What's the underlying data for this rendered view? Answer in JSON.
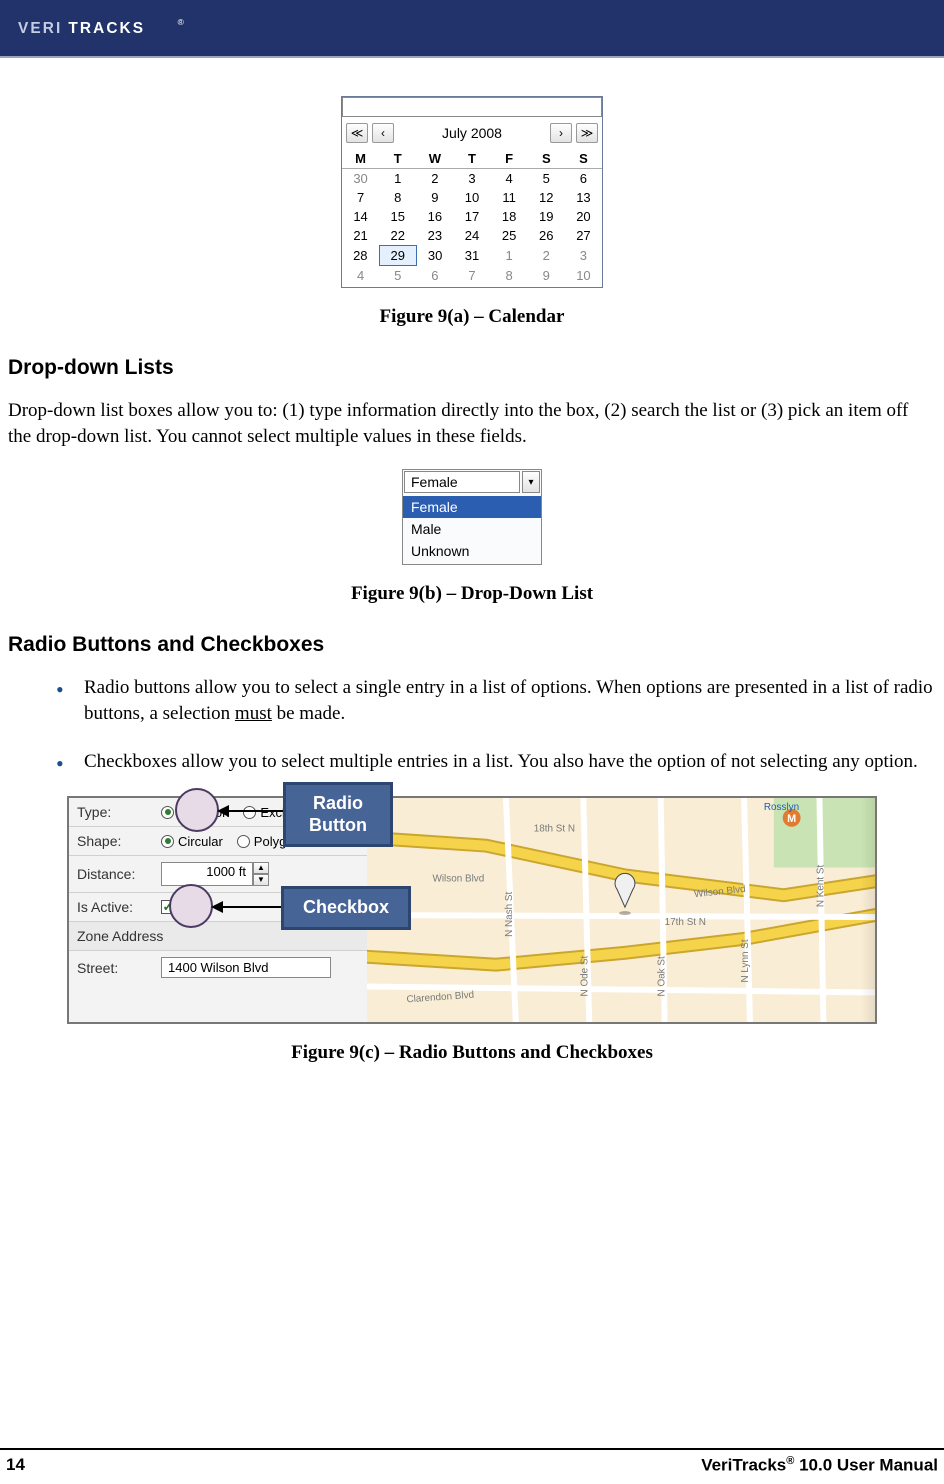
{
  "brand": {
    "name": "VERITRACKS",
    "header_bg": "#22336b"
  },
  "calendar": {
    "month_label": "July 2008",
    "nav": {
      "first": "≪",
      "prev": "‹",
      "next": "›",
      "last": "≫"
    },
    "day_headers": [
      "M",
      "T",
      "W",
      "T",
      "F",
      "S",
      "S"
    ],
    "selected": "29",
    "weeks": [
      {
        "cells": [
          {
            "v": "30",
            "out": true
          },
          {
            "v": "1"
          },
          {
            "v": "2"
          },
          {
            "v": "3"
          },
          {
            "v": "4"
          },
          {
            "v": "5"
          },
          {
            "v": "6"
          }
        ]
      },
      {
        "cells": [
          {
            "v": "7"
          },
          {
            "v": "8"
          },
          {
            "v": "9"
          },
          {
            "v": "10"
          },
          {
            "v": "11"
          },
          {
            "v": "12"
          },
          {
            "v": "13"
          }
        ]
      },
      {
        "cells": [
          {
            "v": "14"
          },
          {
            "v": "15"
          },
          {
            "v": "16"
          },
          {
            "v": "17"
          },
          {
            "v": "18"
          },
          {
            "v": "19"
          },
          {
            "v": "20"
          }
        ]
      },
      {
        "cells": [
          {
            "v": "21"
          },
          {
            "v": "22"
          },
          {
            "v": "23"
          },
          {
            "v": "24"
          },
          {
            "v": "25"
          },
          {
            "v": "26"
          },
          {
            "v": "27"
          }
        ]
      },
      {
        "cells": [
          {
            "v": "28"
          },
          {
            "v": "29",
            "sel": true
          },
          {
            "v": "30"
          },
          {
            "v": "31"
          },
          {
            "v": "1",
            "out": true
          },
          {
            "v": "2",
            "out": true
          },
          {
            "v": "3",
            "out": true
          }
        ]
      },
      {
        "cells": [
          {
            "v": "4",
            "out": true
          },
          {
            "v": "5",
            "out": true
          },
          {
            "v": "6",
            "out": true
          },
          {
            "v": "7",
            "out": true
          },
          {
            "v": "8",
            "out": true
          },
          {
            "v": "9",
            "out": true
          },
          {
            "v": "10",
            "out": true
          }
        ]
      }
    ]
  },
  "captions": {
    "a": "Figure 9(a) – Calendar",
    "b": "Figure 9(b) – Drop-Down List",
    "c": "Figure 9(c) – Radio Buttons and Checkboxes"
  },
  "sections": {
    "dropdown_heading": "Drop-down Lists",
    "dropdown_body": "Drop-down list boxes allow you to: (1) type information directly into the box, (2) search the list or (3) pick an item off the drop-down list. You cannot select multiple values in these fields.",
    "radio_heading": "Radio Buttons and Checkboxes",
    "radio_bullet1_pre": "Radio buttons allow you to select a single entry in a list of options. When options are presented in a list of radio buttons, a selection ",
    "radio_bullet1_u": "must",
    "radio_bullet1_post": " be made.",
    "radio_bullet2": "Checkboxes allow you to select multiple entries in a list. You also have the option of not selecting any option."
  },
  "dropdown_widget": {
    "value": "Female",
    "options": [
      "Female",
      "Male",
      "Unknown"
    ],
    "selected_index": 0
  },
  "form": {
    "labels": {
      "type": "Type:",
      "shape": "Shape:",
      "distance": "Distance:",
      "active": "Is Active:",
      "zone": "Zone Address",
      "street": "Street:"
    },
    "type_options": [
      {
        "label": "Inclusion",
        "checked": true
      },
      {
        "label": "Exclusion",
        "checked": false
      }
    ],
    "shape_options": [
      {
        "label": "Circular",
        "checked": true
      },
      {
        "label": "Polygon",
        "checked": false
      }
    ],
    "distance_value": "1000 ft",
    "active": {
      "label": "Yes",
      "checked": true
    },
    "street_value": "1400 Wilson Blvd"
  },
  "callouts": {
    "radio": "Radio\nButton",
    "checkbox": "Checkbox"
  },
  "map": {
    "bg": "#f9edd5",
    "road_main": "#f5d44b",
    "road_outline": "#caa62f",
    "road_minor": "#ffffff",
    "park": "#c9e3b4",
    "m_badge": "#e07b2f",
    "labels": {
      "wilson": "Wilson Blvd",
      "clarendon": "Clarendon Blvd",
      "seventeenth": "17th St N",
      "eighteenth": "18th St N",
      "nash": "N Nash St",
      "ode": "N Ode St",
      "oak": "N Oak St",
      "lynn": "N Lynn St",
      "kent": "N Kent St",
      "rosslyn": "Rosslyn"
    }
  },
  "footer": {
    "page": "14",
    "right_pre": "VeriTracks",
    "right_post": " 10.0 User Manual",
    "reg": "®"
  }
}
